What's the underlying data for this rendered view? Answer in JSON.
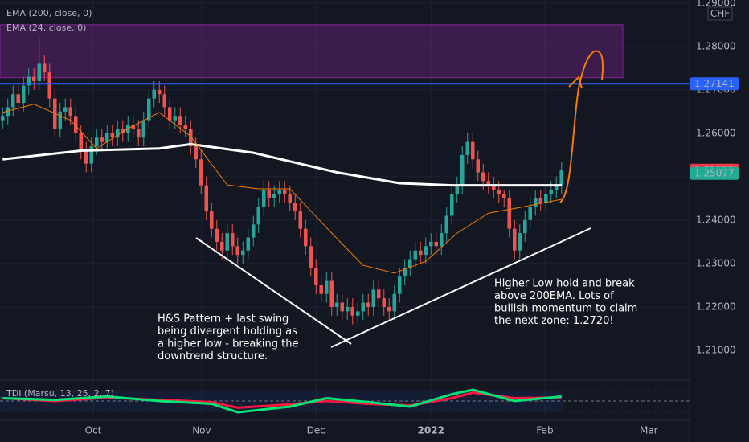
{
  "chart_data": {
    "type": "candlestick",
    "currency": "CHF",
    "up_color": "#26a69a",
    "down_color": "#ef5350",
    "open": [
      1.263,
      1.264,
      1.266,
      1.269,
      1.267,
      1.271,
      1.273,
      1.272,
      1.276,
      1.274,
      1.268,
      1.261,
      1.265,
      1.266,
      1.264,
      1.26,
      1.256,
      1.253,
      1.257,
      1.259,
      1.258,
      1.26,
      1.259,
      1.261,
      1.26,
      1.262,
      1.261,
      1.259,
      1.263,
      1.268,
      1.27,
      1.269,
      1.266,
      1.263,
      1.264,
      1.262,
      1.261,
      1.257,
      1.254,
      1.248,
      1.242,
      1.238,
      1.235,
      1.233,
      1.237,
      1.234,
      1.232,
      1.233,
      1.236,
      1.239,
      1.243,
      1.247,
      1.245,
      1.246,
      1.247,
      1.246,
      1.244,
      1.242,
      1.238,
      1.234,
      1.229,
      1.225,
      1.223,
      1.226,
      1.22,
      1.221,
      1.219,
      1.22,
      1.218,
      1.219,
      1.221,
      1.22,
      1.224,
      1.222,
      1.22,
      1.219,
      1.223,
      1.227,
      1.229,
      1.231,
      1.233,
      1.232,
      1.234,
      1.235,
      1.234,
      1.237,
      1.241,
      1.246,
      1.248,
      1.255,
      1.258,
      1.254,
      1.251,
      1.249,
      1.248,
      1.247,
      1.246,
      1.245,
      1.238,
      1.233,
      1.237,
      1.24,
      1.243,
      1.245,
      1.244,
      1.246,
      1.247,
      1.248
    ],
    "high": [
      1.266,
      1.268,
      1.271,
      1.271,
      1.273,
      1.275,
      1.275,
      1.282,
      1.278,
      1.276,
      1.27,
      1.267,
      1.268,
      1.268,
      1.266,
      1.262,
      1.258,
      1.259,
      1.261,
      1.261,
      1.262,
      1.262,
      1.263,
      1.263,
      1.264,
      1.264,
      1.263,
      1.265,
      1.27,
      1.272,
      1.272,
      1.271,
      1.268,
      1.266,
      1.266,
      1.264,
      1.263,
      1.259,
      1.256,
      1.25,
      1.244,
      1.24,
      1.237,
      1.239,
      1.239,
      1.236,
      1.235,
      1.238,
      1.241,
      1.245,
      1.249,
      1.249,
      1.248,
      1.249,
      1.249,
      1.248,
      1.246,
      1.244,
      1.24,
      1.236,
      1.231,
      1.227,
      1.228,
      1.228,
      1.223,
      1.223,
      1.222,
      1.222,
      1.221,
      1.223,
      1.223,
      1.226,
      1.226,
      1.224,
      1.222,
      1.225,
      1.229,
      1.231,
      1.233,
      1.235,
      1.235,
      1.236,
      1.237,
      1.237,
      1.239,
      1.243,
      1.248,
      1.25,
      1.257,
      1.26,
      1.26,
      1.256,
      1.253,
      1.251,
      1.25,
      1.249,
      1.247,
      1.247,
      1.24,
      1.239,
      1.242,
      1.245,
      1.247,
      1.247,
      1.248,
      1.249,
      1.25,
      1.2535
    ],
    "low": [
      1.261,
      1.262,
      1.264,
      1.265,
      1.265,
      1.269,
      1.27,
      1.27,
      1.272,
      1.266,
      1.259,
      1.259,
      1.263,
      1.262,
      1.258,
      1.254,
      1.251,
      1.251,
      1.255,
      1.256,
      1.256,
      1.257,
      1.257,
      1.258,
      1.258,
      1.259,
      1.257,
      1.257,
      1.261,
      1.266,
      1.267,
      1.264,
      1.261,
      1.261,
      1.26,
      1.259,
      1.255,
      1.252,
      1.246,
      1.24,
      1.236,
      1.233,
      1.231,
      1.231,
      1.232,
      1.23,
      1.23,
      1.231,
      1.234,
      1.237,
      1.241,
      1.243,
      1.243,
      1.244,
      1.244,
      1.242,
      1.24,
      1.236,
      1.232,
      1.227,
      1.223,
      1.221,
      1.221,
      1.218,
      1.218,
      1.217,
      1.217,
      1.216,
      1.216,
      1.217,
      1.218,
      1.218,
      1.22,
      1.218,
      1.217,
      1.217,
      1.221,
      1.225,
      1.227,
      1.229,
      1.23,
      1.23,
      1.232,
      1.232,
      1.232,
      1.235,
      1.239,
      1.244,
      1.246,
      1.253,
      1.252,
      1.249,
      1.247,
      1.246,
      1.245,
      1.244,
      1.243,
      1.236,
      1.231,
      1.231,
      1.235,
      1.238,
      1.241,
      1.242,
      1.242,
      1.244,
      1.245,
      1.246
    ],
    "close": [
      1.264,
      1.266,
      1.269,
      1.267,
      1.271,
      1.273,
      1.272,
      1.276,
      1.274,
      1.268,
      1.261,
      1.265,
      1.266,
      1.264,
      1.26,
      1.256,
      1.253,
      1.257,
      1.259,
      1.258,
      1.26,
      1.259,
      1.261,
      1.26,
      1.262,
      1.261,
      1.259,
      1.263,
      1.268,
      1.27,
      1.269,
      1.266,
      1.263,
      1.264,
      1.262,
      1.261,
      1.257,
      1.254,
      1.248,
      1.242,
      1.238,
      1.235,
      1.233,
      1.237,
      1.234,
      1.232,
      1.233,
      1.236,
      1.239,
      1.243,
      1.247,
      1.245,
      1.246,
      1.247,
      1.246,
      1.244,
      1.242,
      1.238,
      1.234,
      1.229,
      1.225,
      1.223,
      1.226,
      1.22,
      1.221,
      1.219,
      1.22,
      1.218,
      1.219,
      1.221,
      1.22,
      1.224,
      1.222,
      1.22,
      1.219,
      1.223,
      1.227,
      1.229,
      1.231,
      1.233,
      1.232,
      1.234,
      1.235,
      1.234,
      1.237,
      1.241,
      1.246,
      1.248,
      1.255,
      1.258,
      1.254,
      1.251,
      1.249,
      1.248,
      1.247,
      1.246,
      1.245,
      1.238,
      1.233,
      1.237,
      1.24,
      1.243,
      1.245,
      1.244,
      1.246,
      1.247,
      1.248,
      1.2515
    ],
    "series": [
      {
        "name": "EMA (200, close, 0)",
        "color": "#ffffff",
        "x": [
          0,
          15,
          30,
          36,
          48,
          64,
          76,
          86,
          95,
          107
        ],
        "values": [
          1.254,
          1.256,
          1.2565,
          1.2575,
          1.2555,
          1.251,
          1.2485,
          1.248,
          1.248,
          1.248
        ]
      },
      {
        "name": "EMA (24, close, 0)",
        "color": "#f57c00",
        "x": [
          0,
          6,
          13,
          18,
          24,
          30,
          36,
          43,
          49,
          55,
          63,
          69,
          75,
          81,
          87,
          93,
          99,
          107
        ],
        "values": [
          1.2648,
          1.2667,
          1.263,
          1.2565,
          1.2611,
          1.2648,
          1.2593,
          1.2481,
          1.2472,
          1.2472,
          1.237,
          1.2296,
          1.2278,
          1.2305,
          1.237,
          1.2416,
          1.2429,
          1.2448
        ]
      }
    ],
    "xlim": [
      -0.5,
      131.5
    ],
    "xticks": [
      {
        "value": 17.35,
        "label": "Oct"
      },
      {
        "value": 38.1,
        "label": "Nov"
      },
      {
        "value": 60,
        "label": "Dec"
      },
      {
        "value": 82,
        "label": "2022"
      },
      {
        "value": 103.8,
        "label": "Feb"
      },
      {
        "value": 123.7,
        "label": "Mar"
      }
    ],
    "ylim": [
      1.2037,
      1.2907
    ],
    "yticks": [
      {
        "value": 1.29,
        "label": "1.29000"
      },
      {
        "value": 1.28,
        "label": "1.28000"
      },
      {
        "value": 1.27,
        "label": "1.27000"
      },
      {
        "value": 1.26,
        "label": "1.26000"
      },
      {
        "value": 1.25,
        "label": "1.25000"
      },
      {
        "value": 1.24,
        "label": "1.24000"
      },
      {
        "value": 1.23,
        "label": "1.23000"
      },
      {
        "value": 1.22,
        "label": "1.22000"
      },
      {
        "value": 1.21,
        "label": "1.21000"
      }
    ],
    "grid": true,
    "zone": {
      "top": 1.285,
      "bottom": 1.2728,
      "color": "#9c27b0"
    },
    "level": {
      "value": 1.27141,
      "label": "1.27141",
      "color": "#2962ff"
    },
    "price_labels": [
      {
        "value": 1.25151,
        "label": "1.25151",
        "color": "#f23645"
      },
      {
        "value": 1.25077,
        "label": "1.25077",
        "color": "#22ab94"
      }
    ],
    "annotations": [
      [
        "H&S Pattern + last swing",
        "being divergent holding as",
        "a higher low - breaking the",
        "downtrend structure."
      ],
      [
        "Higher Low hold and break",
        "above 200EMA. Lots of",
        "bullish momentum to claim",
        "the next zone: 1.2720!"
      ]
    ],
    "indicator": {
      "name": "TDI (Marsu, 13, 25, 2, 7)",
      "ylim": [
        20,
        80
      ],
      "levels": [
        68,
        50,
        32
      ],
      "series": [
        {
          "color": "#ff1744",
          "x": [
            0,
            10,
            20,
            30,
            40,
            45,
            55,
            62,
            70,
            78,
            86,
            90,
            98,
            107
          ],
          "values": [
            55,
            50,
            56,
            52,
            48,
            38,
            44,
            50,
            45,
            42,
            55,
            65,
            55,
            56
          ]
        },
        {
          "color": "#00e676",
          "x": [
            0,
            10,
            20,
            30,
            40,
            45,
            55,
            62,
            70,
            78,
            86,
            90,
            98,
            107
          ],
          "values": [
            55,
            52,
            58,
            50,
            45,
            30,
            40,
            55,
            48,
            40,
            62,
            70,
            50,
            58
          ]
        }
      ]
    }
  }
}
